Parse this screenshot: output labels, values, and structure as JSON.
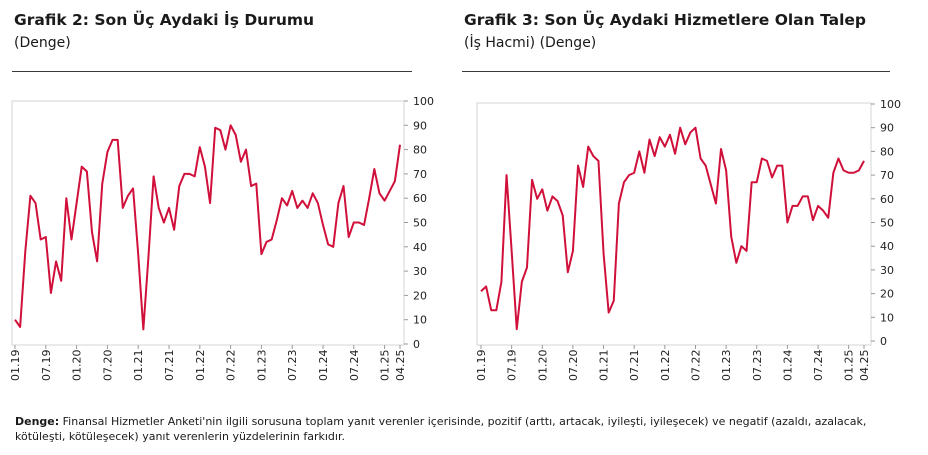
{
  "charts": [
    {
      "title": "Grafik 2: Son Üç Aydaki İş Durumu",
      "subtitle": "(Denge)"
    },
    {
      "title": "Grafik 3: Son Üç Aydaki Hizmetlere Olan Talep",
      "subtitle": "(İş Hacmi) (Denge)"
    }
  ],
  "note": {
    "label": "Denge:",
    "text": "Finansal Hizmetler Anketi'nin ilgili sorusuna toplam yanıt verenler içerisinde, pozitif (arttı, artacak, iyileşti, iyileşecek) ve negatif (azaldı, azalacak, kötüleşti, kötüleşecek) yanıt verenlerin yüzdelerinin farkıdır."
  },
  "chart_data": [
    {
      "type": "line",
      "title": "Grafik 2: Son Üç Aydaki İş Durumu",
      "subtitle": "(Denge)",
      "color": "#d0103a",
      "ylim": [
        0,
        100
      ],
      "yticks": [
        0,
        10,
        20,
        30,
        40,
        50,
        60,
        70,
        80,
        90,
        100
      ],
      "xticks": [
        "01.19",
        "07.19",
        "01.20",
        "07.20",
        "01.21",
        "07.21",
        "01.22",
        "07.22",
        "01.23",
        "07.23",
        "01.24",
        "07.24",
        "01.25",
        "04.25"
      ],
      "grid": false,
      "series": [
        {
          "values": [
            10,
            7,
            38,
            61,
            58,
            43,
            44,
            21,
            34,
            26,
            60,
            43,
            58,
            73,
            71,
            46,
            34,
            66,
            79,
            84,
            84,
            56,
            61,
            64,
            37,
            6,
            36,
            69,
            56,
            50,
            56,
            47,
            65,
            70,
            70,
            69,
            81,
            73,
            58,
            89,
            88,
            80,
            90,
            86,
            75,
            80,
            65,
            66,
            37,
            42,
            43,
            51,
            60,
            57,
            63,
            56,
            59,
            56,
            62,
            58,
            49,
            41,
            40,
            58,
            65,
            44,
            50,
            50,
            49,
            60,
            72,
            62,
            59,
            63,
            67,
            82
          ]
        }
      ]
    },
    {
      "type": "line",
      "title": "Grafik 3: Son Üç Aydaki Hizmetlere Olan Talep",
      "subtitle": "(İş Hacmi) (Denge)",
      "color": "#d0103a",
      "ylim": [
        0,
        100
      ],
      "yticks": [
        0,
        10,
        20,
        30,
        40,
        50,
        60,
        70,
        80,
        90,
        100
      ],
      "xticks": [
        "01.19",
        "07.19",
        "01.20",
        "07.20",
        "01.21",
        "07.21",
        "01.22",
        "07.22",
        "01.23",
        "07.23",
        "01.24",
        "07.24",
        "01.25",
        "04.25"
      ],
      "grid": false,
      "series": [
        {
          "values": [
            21,
            23,
            13,
            13,
            25,
            70,
            38,
            5,
            25,
            31,
            68,
            60,
            64,
            55,
            61,
            59,
            53,
            29,
            38,
            74,
            65,
            82,
            78,
            76,
            37,
            12,
            17,
            58,
            67,
            70,
            71,
            80,
            71,
            85,
            78,
            86,
            82,
            87,
            79,
            90,
            83,
            88,
            90,
            77,
            74,
            66,
            58,
            81,
            72,
            44,
            33,
            40,
            38,
            67,
            67,
            77,
            76,
            69,
            74,
            74,
            50,
            57,
            57,
            61,
            61,
            51,
            57,
            55,
            52,
            71,
            77,
            72,
            71,
            71,
            72,
            76
          ]
        }
      ]
    }
  ]
}
